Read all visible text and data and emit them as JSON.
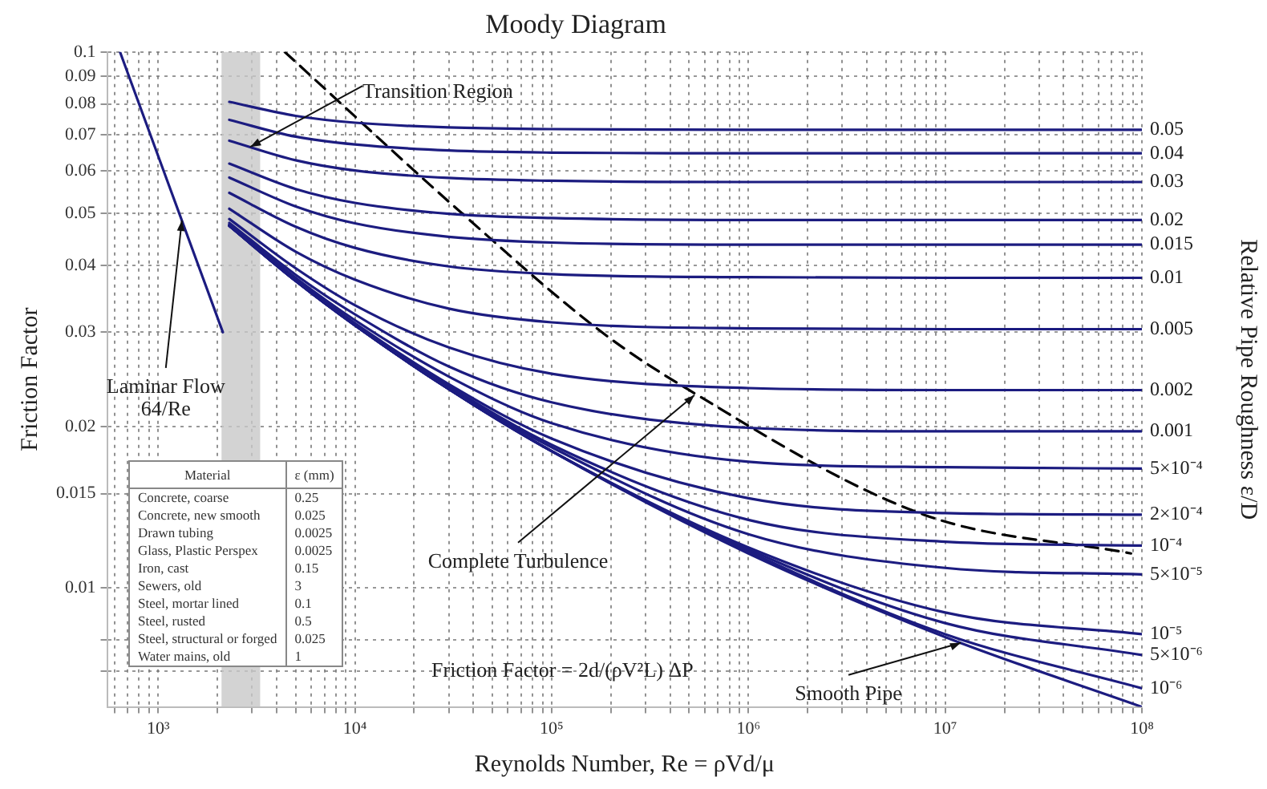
{
  "chart_data": [
    {
      "type": "line",
      "title": "Moody Diagram",
      "xlabel": "Reynolds Number, Re = ρVd/μ",
      "ylabel": "Friction Factor",
      "y2label": "Relative Pipe Roughness ε/D",
      "log": "xy",
      "grid": true,
      "legend": false,
      "marker": "none",
      "xlim": [
        550,
        100000000
      ],
      "ylim": [
        0.006,
        0.1
      ],
      "xticks": [
        {
          "value": 600,
          "label": null
        },
        {
          "value": 700,
          "label": null
        },
        {
          "value": 800,
          "label": null
        },
        {
          "value": 900,
          "label": null
        },
        {
          "value": 1000,
          "label": "10³"
        },
        {
          "value": 2000,
          "label": null
        },
        {
          "value": 3000,
          "label": null
        },
        {
          "value": 4000,
          "label": null
        },
        {
          "value": 5000,
          "label": null
        },
        {
          "value": 6000,
          "label": null
        },
        {
          "value": 7000,
          "label": null
        },
        {
          "value": 8000,
          "label": null
        },
        {
          "value": 9000,
          "label": null
        },
        {
          "value": 10000,
          "label": "10⁴"
        },
        {
          "value": 20000,
          "label": null
        },
        {
          "value": 30000,
          "label": null
        },
        {
          "value": 40000,
          "label": null
        },
        {
          "value": 50000,
          "label": null
        },
        {
          "value": 60000,
          "label": null
        },
        {
          "value": 70000,
          "label": null
        },
        {
          "value": 80000,
          "label": null
        },
        {
          "value": 90000,
          "label": null
        },
        {
          "value": 100000,
          "label": "10⁵"
        },
        {
          "value": 200000,
          "label": null
        },
        {
          "value": 300000,
          "label": null
        },
        {
          "value": 400000,
          "label": null
        },
        {
          "value": 500000,
          "label": null
        },
        {
          "value": 600000,
          "label": null
        },
        {
          "value": 700000,
          "label": null
        },
        {
          "value": 800000,
          "label": null
        },
        {
          "value": 900000,
          "label": null
        },
        {
          "value": 1000000,
          "label": "10⁶"
        },
        {
          "value": 2000000,
          "label": null
        },
        {
          "value": 3000000,
          "label": null
        },
        {
          "value": 4000000,
          "label": null
        },
        {
          "value": 5000000,
          "label": null
        },
        {
          "value": 6000000,
          "label": null
        },
        {
          "value": 7000000,
          "label": null
        },
        {
          "value": 8000000,
          "label": null
        },
        {
          "value": 9000000,
          "label": null
        },
        {
          "value": 10000000,
          "label": "10⁷"
        },
        {
          "value": 20000000,
          "label": null
        },
        {
          "value": 30000000,
          "label": null
        },
        {
          "value": 40000000,
          "label": null
        },
        {
          "value": 50000000,
          "label": null
        },
        {
          "value": 60000000,
          "label": null
        },
        {
          "value": 70000000,
          "label": null
        },
        {
          "value": 80000000,
          "label": null
        },
        {
          "value": 90000000,
          "label": null
        },
        {
          "value": 100000000,
          "label": "10⁸"
        }
      ],
      "yticks": [
        0.1,
        0.09,
        0.08,
        0.07,
        0.06,
        0.05,
        0.04,
        0.03,
        0.02,
        0.015,
        0.01,
        {
          "value": 0.008,
          "label": null
        },
        {
          "value": 0.007,
          "label": null
        }
      ],
      "bands": [
        {
          "axis": "x",
          "from": 2100,
          "to": 3300,
          "color": "#c8c8c8"
        }
      ],
      "annotations": [
        {
          "text": "Transition Region",
          "x": 2940,
          "y": 0.0665
        },
        {
          "text": "Laminar Flow\n64/Re",
          "x": 1320,
          "y": 0.0485
        },
        {
          "text": "Complete Turbulence",
          "x": 532000,
          "y": 0.0229
        },
        {
          "text": "Smooth Pipe",
          "x": 12000000,
          "y": 0.0079
        },
        "Friction Factor = 2d/(ρV²L) ΔP"
      ],
      "x": [
        2300,
        5000,
        10000,
        30000,
        100000,
        1000000,
        10000000,
        100000000
      ],
      "series": [
        {
          "name": "0.05",
          "color": "#1c1c80",
          "values": [
            0.0807,
            0.076,
            0.0738,
            0.0723,
            0.0718,
            0.0716,
            0.0716,
            0.0716
          ]
        },
        {
          "name": "0.04",
          "color": "#1c1c80",
          "values": [
            0.0747,
            0.0695,
            0.0672,
            0.0655,
            0.0649,
            0.0647,
            0.0647,
            0.0647
          ]
        },
        {
          "name": "0.03",
          "color": "#1c1c80",
          "values": [
            0.0683,
            0.0628,
            0.0601,
            0.0582,
            0.0575,
            0.0572,
            0.0572,
            0.0572
          ]
        },
        {
          "name": "0.02",
          "color": "#1c1c80",
          "values": [
            0.0619,
            0.0555,
            0.0523,
            0.0499,
            0.049,
            0.0486,
            0.0486,
            0.0486
          ]
        },
        {
          "name": "0.015",
          "color": "#1c1c80",
          "values": [
            0.0583,
            0.0515,
            0.0479,
            0.0452,
            0.0441,
            0.0437,
            0.0437,
            0.0437
          ]
        },
        {
          "name": "0.01",
          "color": "#1c1c80",
          "values": [
            0.0546,
            0.0472,
            0.0431,
            0.0398,
            0.0385,
            0.038,
            0.0379,
            0.0379
          ]
        },
        {
          "name": "0.005",
          "color": "#1c1c80",
          "values": [
            0.051,
            0.0424,
            0.0376,
            0.0332,
            0.0313,
            0.0305,
            0.0304,
            0.0304
          ]
        },
        {
          "name": "0.002",
          "color": "#1c1c80",
          "values": [
            0.0488,
            0.0395,
            0.0337,
            0.0281,
            0.0251,
            0.0236,
            0.0234,
            0.0234
          ]
        },
        {
          "name": "0.001",
          "color": "#1c1c80",
          "values": [
            0.048,
            0.0384,
            0.0324,
            0.0259,
            0.0222,
            0.0199,
            0.0196,
            0.0196
          ]
        },
        {
          "name": "5×10⁻⁴",
          "color": "#1c1c80",
          "values": [
            0.0477,
            0.0379,
            0.0316,
            0.0248,
            0.0203,
            0.0172,
            0.0168,
            0.0167
          ]
        },
        {
          "name": "2×10⁻⁴",
          "color": "#1c1c80",
          "values": [
            0.0475,
            0.0376,
            0.0312,
            0.024,
            0.019,
            0.0147,
            0.0138,
            0.0137
          ]
        },
        {
          "name": "10⁻⁴",
          "color": "#1c1c80",
          "values": [
            0.0474,
            0.0375,
            0.031,
            0.0238,
            0.0185,
            0.0134,
            0.0122,
            0.012
          ]
        },
        {
          "name": "5×10⁻⁵",
          "color": "#1c1c80",
          "values": [
            0.0474,
            0.0374,
            0.031,
            0.0236,
            0.0183,
            0.0126,
            0.0109,
            0.0106
          ]
        },
        {
          "name": "10⁻⁵",
          "color": "#1c1c80",
          "values": [
            0.0474,
            0.0374,
            0.0309,
            0.0235,
            0.018,
            0.0119,
            0.009,
            0.0082
          ]
        },
        {
          "name": "5×10⁻⁶",
          "color": "#1c1c80",
          "values": [
            0.0474,
            0.0374,
            0.0309,
            0.0235,
            0.018,
            0.0118,
            0.0086,
            0.0075
          ]
        },
        {
          "name": "10⁻⁶",
          "color": "#1c1c80",
          "values": [
            0.0474,
            0.0374,
            0.0309,
            0.0235,
            0.018,
            0.0117,
            0.0082,
            0.0065
          ]
        },
        {
          "color": "#1c1c80",
          "values": [
            0.0474,
            0.0374,
            0.0309,
            0.0235,
            0.018,
            0.0116,
            0.0081,
            0.006
          ]
        },
        {
          "color": "#1c1c80",
          "x": [
            640,
            2133
          ],
          "values": [
            0.1,
            0.03
          ]
        },
        {
          "color": "#000000",
          "line_style": "dashed",
          "x": [
            4400,
            35000,
            180000,
            490000,
            7800000,
            88000000
          ],
          "values": [
            0.1,
            0.05,
            0.03,
            0.0235,
            0.0137,
            0.0116
          ]
        }
      ]
    },
    {
      "type": "other",
      "xlabel": "Material",
      "ylabel": "ε (mm)",
      "data_labels": true,
      "categories": [
        "Concrete, coarse",
        "Concrete, new smooth",
        "Drawn tubing",
        "Glass, Plastic Perspex",
        "Iron, cast",
        "Sewers, old",
        "Steel, mortar lined",
        "Steel, rusted",
        "Steel, structural or forged",
        "Water mains, old"
      ],
      "values": [
        0.25,
        0.025,
        0.0025,
        0.0025,
        0.15,
        3,
        0.1,
        0.5,
        0.025,
        1
      ]
    }
  ]
}
